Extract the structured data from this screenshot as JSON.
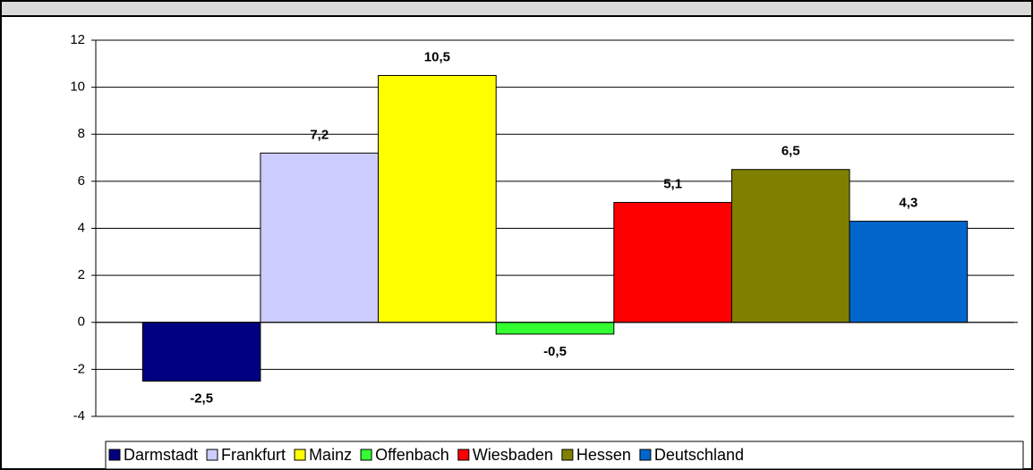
{
  "chart_data": {
    "type": "bar",
    "categories": [
      null
    ],
    "series": [
      {
        "name": "Darmstadt",
        "color": "#000080",
        "values": [
          -2.5
        ],
        "value_labels": [
          "-2,5"
        ]
      },
      {
        "name": "Frankfurt",
        "color": "#ccccff",
        "values": [
          7.2
        ],
        "value_labels": [
          "7,2"
        ]
      },
      {
        "name": "Mainz",
        "color": "#ffff00",
        "values": [
          10.5
        ],
        "value_labels": [
          "10,5"
        ]
      },
      {
        "name": "Offenbach",
        "color": "#33ff33",
        "values": [
          -0.5
        ],
        "value_labels": [
          "-0,5"
        ]
      },
      {
        "name": "Wiesbaden",
        "color": "#ff0000",
        "values": [
          5.1
        ],
        "value_labels": [
          "5,1"
        ]
      },
      {
        "name": "Hessen",
        "color": "#808000",
        "values": [
          6.5
        ],
        "value_labels": [
          "6,5"
        ]
      },
      {
        "name": "Deutschland",
        "color": "#0066cc",
        "values": [
          4.3
        ],
        "value_labels": [
          "4,3"
        ]
      }
    ],
    "ylim": [
      -4,
      12
    ],
    "yticks": [
      -4,
      -2,
      0,
      2,
      4,
      6,
      8,
      10,
      12
    ],
    "grid": true,
    "legend": "bottom"
  }
}
